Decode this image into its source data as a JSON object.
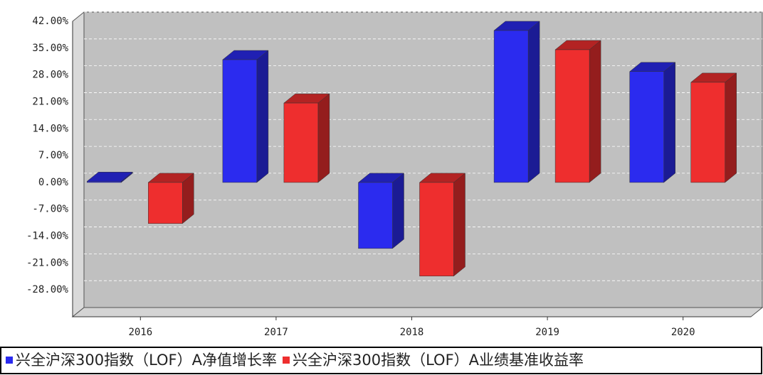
{
  "chart_data": {
    "type": "bar3d",
    "categories": [
      "2016",
      "2017",
      "2018",
      "2019",
      "2020"
    ],
    "series": [
      {
        "name": "兴全沪深300指数（LOF）A净值增长率",
        "color": "#2b2bef",
        "values": [
          0.3,
          32.0,
          -17.2,
          39.6,
          28.9
        ]
      },
      {
        "name": "兴全沪深300指数（LOF）A业绩基准收益率",
        "color": "#ee2e2e",
        "values": [
          -10.7,
          20.7,
          -24.4,
          34.6,
          26.1
        ]
      }
    ],
    "ylim": [
      -35,
      42
    ],
    "yticks": [
      {
        "value": 42,
        "label": "42.00%"
      },
      {
        "value": 35,
        "label": "35.00%"
      },
      {
        "value": 28,
        "label": "28.00%"
      },
      {
        "value": 21,
        "label": "21.00%"
      },
      {
        "value": 14,
        "label": "14.00%"
      },
      {
        "value": 7,
        "label": "7.00%"
      },
      {
        "value": 0,
        "label": "0.00%"
      },
      {
        "value": -7,
        "label": "-7.00%"
      },
      {
        "value": -14,
        "label": "-14.00%"
      },
      {
        "value": -21,
        "label": "-21.00%"
      },
      {
        "value": -28,
        "label": "-28.00%"
      }
    ],
    "grid": true
  }
}
